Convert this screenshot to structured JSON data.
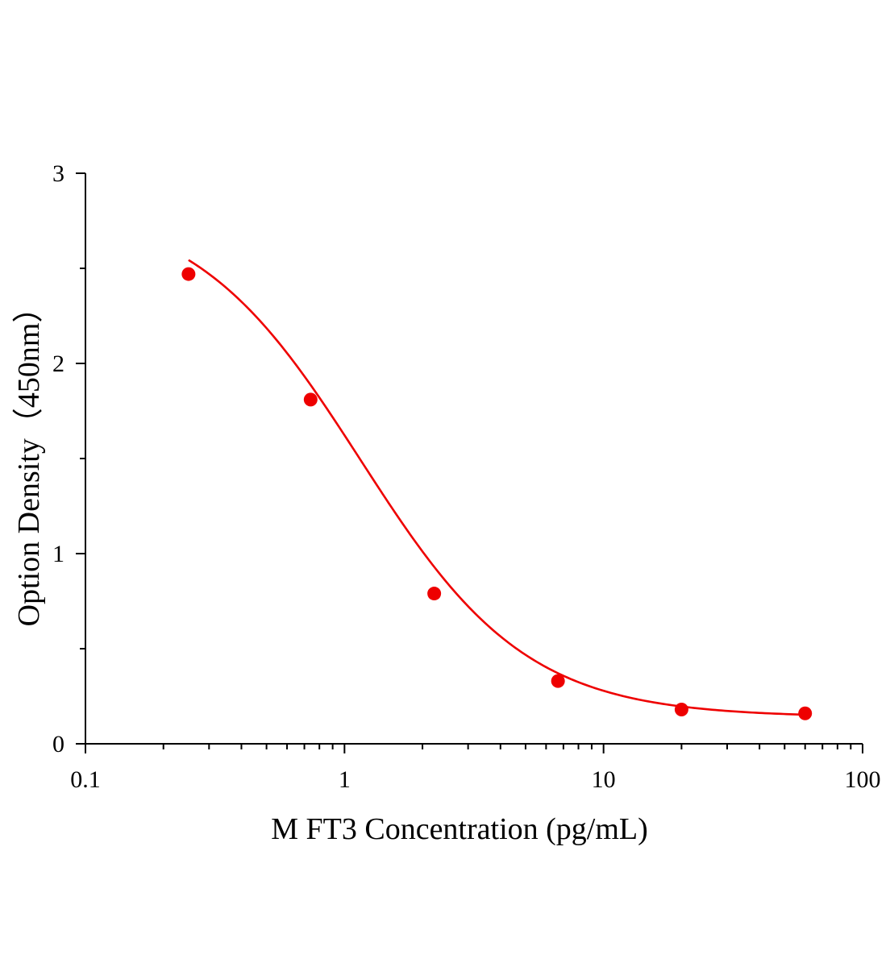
{
  "chart_data": {
    "type": "scatter",
    "xlabel": "M FT3 Concentration (pg/mL)",
    "ylabel": "Option Density（450nm）",
    "x_scale": "log",
    "xlim": [
      0.1,
      100
    ],
    "ylim": [
      0,
      3
    ],
    "x_ticks": [
      0.1,
      1,
      10,
      100
    ],
    "x_tick_labels": [
      "0.1",
      "1",
      "10",
      "100"
    ],
    "y_ticks": [
      0,
      1,
      2,
      3
    ],
    "y_tick_labels": [
      "0",
      "1",
      "2",
      "3"
    ],
    "grid": false,
    "series": [
      {
        "points": [
          {
            "x": 0.25,
            "y": 2.47
          },
          {
            "x": 0.74,
            "y": 1.81
          },
          {
            "x": 2.22,
            "y": 0.79
          },
          {
            "x": 6.67,
            "y": 0.33
          },
          {
            "x": 20,
            "y": 0.18
          },
          {
            "x": 60,
            "y": 0.16
          }
        ],
        "fit_curve": "4PL",
        "color": "#ee0000"
      }
    ]
  }
}
